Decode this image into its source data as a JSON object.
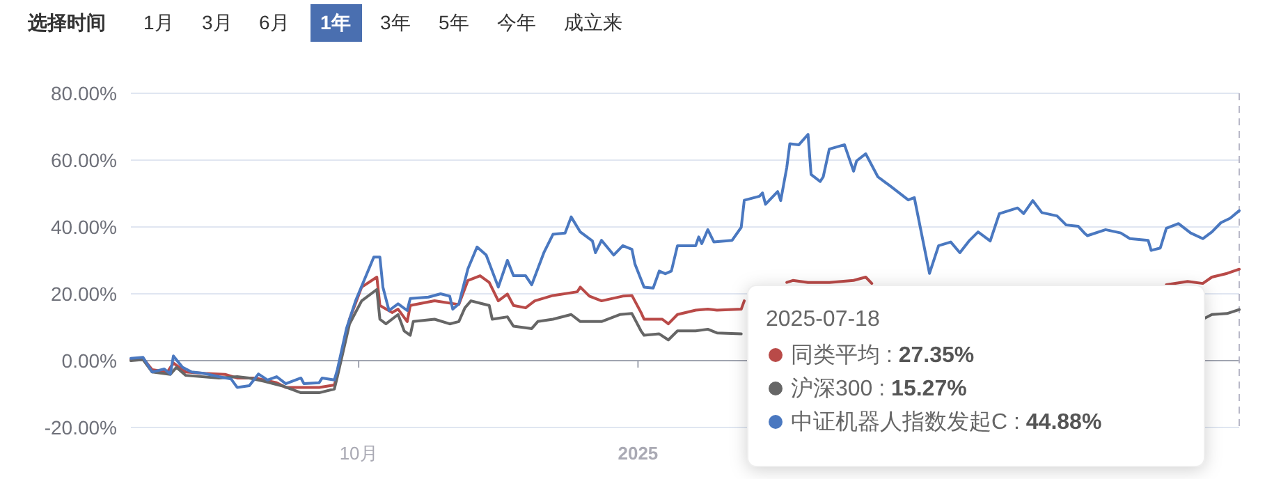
{
  "chart_data": [
    {
      "type": "other",
      "annotations": [
        "选择时间",
        "1月",
        "3月",
        "6月",
        "1年",
        "3年",
        "5年",
        "今年",
        "成立来"
      ]
    },
    {
      "type": "line",
      "ylim": [
        -20,
        80
      ],
      "yticks": [
        {
          "value": -20,
          "label": "-20.00%"
        },
        {
          "value": 0,
          "label": "0.00%"
        },
        {
          "value": 20,
          "label": "20.00%"
        },
        {
          "value": 40,
          "label": "40.00%"
        },
        {
          "value": 60,
          "label": "60.00%"
        },
        {
          "value": 80,
          "label": "80.00%"
        }
      ],
      "xlim": [
        "2024-07-18",
        "2025-07-18"
      ],
      "xticks": [
        {
          "value": "2024-10-01",
          "label": "10月"
        },
        {
          "value": "2025-01-01",
          "label": "2025"
        }
      ],
      "grid": "y",
      "legend": "bottom right",
      "marker": "none",
      "line_style": "solid",
      "ref_lines": [
        {
          "axis": "x",
          "value": "2025-07-18",
          "label": null,
          "line_style": "dashed",
          "color": "#b8b8c8"
        }
      ],
      "annotations": [
        "2025-07-18",
        ": 27.35%",
        ": 15.27%",
        ": 44.88%"
      ],
      "series": [
        {
          "name": "同类平均",
          "color": "#b94a48",
          "x": [
            "2024-07-18",
            "2024-07-22",
            "2024-07-25",
            "2024-07-30",
            "2024-08-01",
            "2024-08-05",
            "2024-08-11",
            "2024-08-18",
            "2024-08-22",
            "2024-08-28",
            "2024-08-31",
            "2024-09-04",
            "2024-09-07",
            "2024-09-18",
            "2024-09-23",
            "2024-09-24",
            "2024-09-28",
            "2024-10-02",
            "2024-10-07",
            "2024-10-08",
            "2024-10-12",
            "2024-10-14",
            "2024-10-17",
            "2024-10-18",
            "2024-10-26",
            "2024-11-03",
            "2024-11-06",
            "2024-11-10",
            "2024-11-13",
            "2024-11-16",
            "2024-11-19",
            "2024-11-21",
            "2024-11-25",
            "2024-11-28",
            "2024-12-04",
            "2024-12-12",
            "2024-12-13",
            "2024-12-16",
            "2024-12-20",
            "2024-12-27",
            "2024-12-30",
            "2025-01-02",
            "2025-01-03",
            "2025-01-09",
            "2025-01-11",
            "2025-01-14",
            "2025-01-20",
            "2025-01-24",
            "2025-01-27",
            "2025-02-04",
            "2025-02-05",
            "2025-02-12",
            "2025-02-19",
            "2025-02-21",
            "2025-02-26",
            "2025-03-05",
            "2025-03-13",
            "2025-03-17",
            "2025-03-19",
            "2025-03-25",
            "2025-06-24",
            "2025-07-01",
            "2025-07-06",
            "2025-07-09",
            "2025-07-14",
            "2025-07-18"
          ],
          "values": [
            0.3,
            0.7,
            -2.7,
            -3.4,
            -0.7,
            -3.4,
            -3.8,
            -4.1,
            -5.2,
            -5.2,
            -5.8,
            -6.6,
            -8,
            -8,
            -7.3,
            -4.1,
            12.4,
            22,
            25,
            16.5,
            14.4,
            15.4,
            11.7,
            16.5,
            17.9,
            16.8,
            24,
            25.4,
            23.4,
            17.9,
            19.9,
            16.5,
            15.8,
            17.9,
            19.5,
            20.6,
            22,
            19.3,
            17.9,
            19.3,
            19.5,
            14.4,
            12.4,
            12.4,
            11,
            13.8,
            15.1,
            15.4,
            15.1,
            15.4,
            17.9,
            null,
            23.4,
            24,
            23.4,
            23.4,
            24,
            25,
            23.1,
            null,
            22.7,
            23.7,
            23.1,
            25,
            26.1,
            27.35
          ]
        },
        {
          "name": "沪深300",
          "color": "#666666",
          "x": [
            "2024-07-18",
            "2024-07-22",
            "2024-07-25",
            "2024-07-31",
            "2024-08-02",
            "2024-08-05",
            "2024-08-16",
            "2024-08-22",
            "2024-08-26",
            "2024-08-31",
            "2024-09-06",
            "2024-09-12",
            "2024-09-18",
            "2024-09-23",
            "2024-09-24",
            "2024-09-28",
            "2024-10-02",
            "2024-10-07",
            "2024-10-08",
            "2024-10-10",
            "2024-10-14",
            "2024-10-16",
            "2024-10-18",
            "2024-10-19",
            "2024-10-26",
            "2024-10-31",
            "2024-11-03",
            "2024-11-05",
            "2024-11-07",
            "2024-11-10",
            "2024-11-13",
            "2024-11-14",
            "2024-11-19",
            "2024-11-21",
            "2024-11-27",
            "2024-11-29",
            "2024-12-04",
            "2024-12-10",
            "2024-12-13",
            "2024-12-20",
            "2024-12-26",
            "2024-12-30",
            "2025-01-02",
            "2025-01-03",
            "2025-01-08",
            "2025-01-11",
            "2025-01-14",
            "2025-01-20",
            "2025-01-24",
            "2025-01-27",
            "2025-02-04",
            "2025-02-10",
            "2025-07-06",
            "2025-07-09",
            "2025-07-14",
            "2025-07-18"
          ],
          "values": [
            0,
            0.3,
            -3.4,
            -4.1,
            -2,
            -4.4,
            -5.2,
            -4.8,
            -5.2,
            -6.2,
            -7.6,
            -9.6,
            -9.6,
            -8.5,
            -4.8,
            11,
            17.9,
            21.3,
            12.4,
            11,
            13.8,
            8.9,
            7.6,
            11.7,
            12.4,
            11,
            11.7,
            15.8,
            17.9,
            17.2,
            16.5,
            12.4,
            13.1,
            10.3,
            9.6,
            11.7,
            12.4,
            13.8,
            11.7,
            11.7,
            13.8,
            14.1,
            8.9,
            7.6,
            8,
            6.2,
            8.9,
            8.9,
            9.4,
            8.3,
            8,
            null,
            12.4,
            13.8,
            14.1,
            15.27
          ]
        },
        {
          "name": "中证机器人指数发起C",
          "color": "#4a78c0",
          "x": [
            "2024-07-18",
            "2024-07-22",
            "2024-07-25",
            "2024-07-29",
            "2024-07-31",
            "2024-08-01",
            "2024-08-04",
            "2024-08-07",
            "2024-08-11",
            "2024-08-16",
            "2024-08-20",
            "2024-08-22",
            "2024-08-26",
            "2024-08-29",
            "2024-09-01",
            "2024-09-04",
            "2024-09-07",
            "2024-09-12",
            "2024-09-13",
            "2024-09-18",
            "2024-09-19",
            "2024-09-23",
            "2024-09-24",
            "2024-09-27",
            "2024-09-30",
            "2024-10-06",
            "2024-10-08",
            "2024-10-09",
            "2024-10-11",
            "2024-10-14",
            "2024-10-17",
            "2024-10-18",
            "2024-10-24",
            "2024-10-28",
            "2024-10-31",
            "2024-11-01",
            "2024-11-03",
            "2024-11-06",
            "2024-11-09",
            "2024-11-12",
            "2024-11-16",
            "2024-11-19",
            "2024-11-21",
            "2024-11-25",
            "2024-11-27",
            "2024-12-01",
            "2024-12-04",
            "2024-12-08",
            "2024-12-10",
            "2024-12-13",
            "2024-12-17",
            "2024-12-18",
            "2024-12-20",
            "2024-12-24",
            "2024-12-27",
            "2024-12-30",
            "2024-12-31",
            "2025-01-03",
            "2025-01-06",
            "2025-01-08",
            "2025-01-10",
            "2025-01-12",
            "2025-01-14",
            "2025-01-20",
            "2025-01-21",
            "2025-01-22",
            "2025-01-24",
            "2025-01-26",
            "2025-02-01",
            "2025-02-04",
            "2025-02-05",
            "2025-02-10",
            "2025-02-11",
            "2025-02-12",
            "2025-02-16",
            "2025-02-17",
            "2025-02-19",
            "2025-02-20",
            "2025-02-23",
            "2025-02-26",
            "2025-02-27",
            "2025-03-02",
            "2025-03-03",
            "2025-03-05",
            "2025-03-10",
            "2025-03-13",
            "2025-03-14",
            "2025-03-17",
            "2025-03-21",
            "2025-03-25",
            "2025-03-31",
            "2025-04-02",
            "2025-04-07",
            "2025-04-10",
            "2025-04-14",
            "2025-04-17",
            "2025-04-20",
            "2025-04-23",
            "2025-04-27",
            "2025-04-30",
            "2025-05-06",
            "2025-05-08",
            "2025-05-11",
            "2025-05-14",
            "2025-05-19",
            "2025-05-22",
            "2025-05-26",
            "2025-05-28",
            "2025-05-29",
            "2025-06-04",
            "2025-06-09",
            "2025-06-12",
            "2025-06-18",
            "2025-06-19",
            "2025-06-22",
            "2025-06-24",
            "2025-06-28",
            "2025-07-02",
            "2025-07-06",
            "2025-07-09",
            "2025-07-12",
            "2025-07-15",
            "2025-07-18"
          ],
          "values": [
            0.7,
            1,
            -3.4,
            -2.5,
            -4,
            1.4,
            -2,
            -3.4,
            -3.8,
            -4.8,
            -5.5,
            -8,
            -7.5,
            -4,
            -5.8,
            -4.8,
            -6.9,
            -5.2,
            -6.9,
            -6.6,
            -5.2,
            -5.8,
            -2.7,
            9.6,
            17.9,
            31,
            31,
            22,
            15,
            17,
            15,
            18.6,
            19,
            20,
            19.3,
            15.4,
            17,
            27.5,
            34,
            31.6,
            22,
            30,
            25.4,
            25.4,
            22.7,
            32.3,
            37.8,
            38.2,
            43,
            38.5,
            35.8,
            32.3,
            36,
            31.6,
            34.4,
            33.3,
            28.9,
            22,
            21.7,
            26.8,
            26,
            26.8,
            34.4,
            34.4,
            37,
            35,
            39.2,
            35.5,
            36,
            39.9,
            48,
            49.2,
            50.2,
            46.8,
            50.6,
            47.9,
            57.8,
            64.9,
            64.6,
            67.7,
            55.7,
            53.6,
            55,
            63.3,
            64.6,
            56.7,
            59.8,
            61.9,
            55,
            52.3,
            48.1,
            48.8,
            26.1,
            34.4,
            35.5,
            32.3,
            35.8,
            38.5,
            35.8,
            44,
            45.7,
            44,
            47.9,
            44.3,
            43.3,
            40.6,
            40.2,
            38.2,
            37.4,
            39.2,
            38.2,
            36.5,
            36,
            33,
            33.7,
            39.6,
            41,
            38.2,
            36.5,
            38.5,
            41.3,
            42.6,
            44.88
          ]
        }
      ]
    }
  ]
}
